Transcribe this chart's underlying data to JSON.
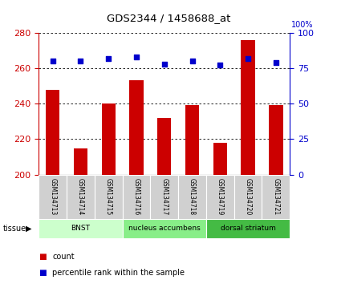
{
  "title": "GDS2344 / 1458688_at",
  "samples": [
    "GSM134713",
    "GSM134714",
    "GSM134715",
    "GSM134716",
    "GSM134717",
    "GSM134718",
    "GSM134719",
    "GSM134720",
    "GSM134721"
  ],
  "counts": [
    248,
    215,
    240,
    253,
    232,
    239,
    218,
    276,
    239
  ],
  "percentiles": [
    80,
    80,
    82,
    83,
    78,
    80,
    77,
    82,
    79
  ],
  "ylim_left": [
    200,
    280
  ],
  "ylim_right": [
    0,
    100
  ],
  "yticks_left": [
    200,
    220,
    240,
    260,
    280
  ],
  "yticks_right": [
    0,
    25,
    50,
    75,
    100
  ],
  "bar_color": "#cc0000",
  "dot_color": "#0000cc",
  "grid_color": "#000000",
  "tissue_groups": [
    {
      "label": "BNST",
      "start": 0,
      "end": 3,
      "color": "#ccffcc"
    },
    {
      "label": "nucleus accumbens",
      "start": 3,
      "end": 6,
      "color": "#88ee88"
    },
    {
      "label": "dorsal striatum",
      "start": 6,
      "end": 9,
      "color": "#44bb44"
    }
  ],
  "left_axis_color": "#cc0000",
  "right_axis_color": "#0000cc",
  "background_color": "#ffffff",
  "sample_box_color": "#d0d0d0",
  "right_axis_100pct_label": "100%"
}
